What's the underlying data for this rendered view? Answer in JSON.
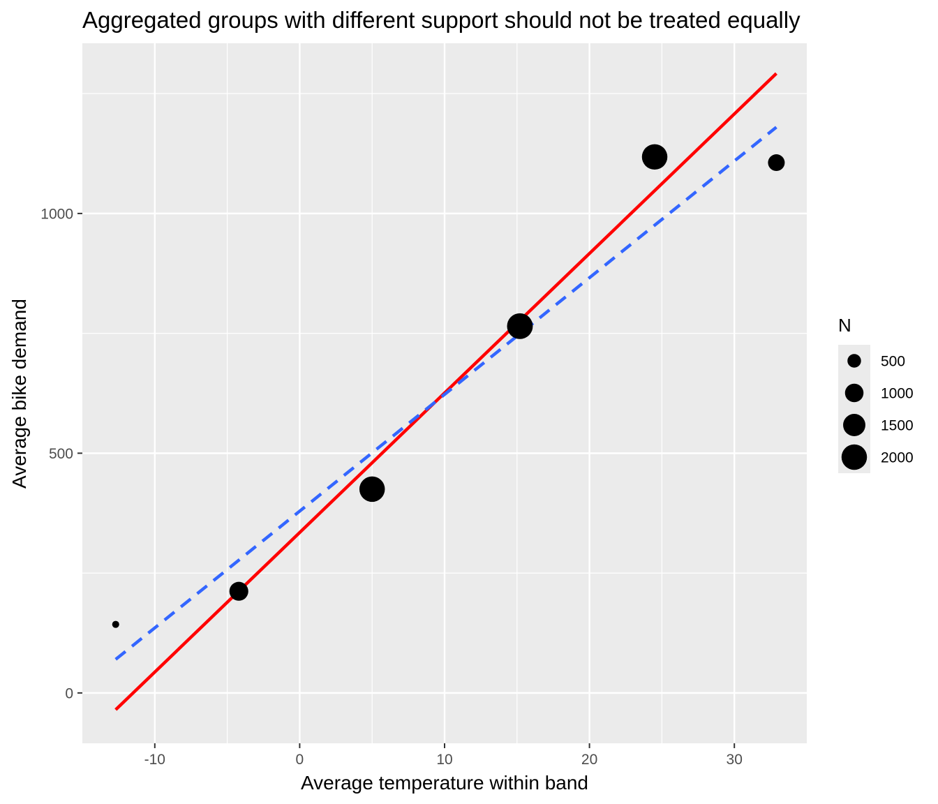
{
  "chart_data": {
    "type": "scatter",
    "title": "Aggregated groups with different support should not be treated equally",
    "xlabel": "Average temperature within band",
    "ylabel": "Average bike demand",
    "xlim": [
      -15,
      35
    ],
    "ylim": [
      -105,
      1355
    ],
    "x_ticks": [
      -10,
      0,
      10,
      20,
      30
    ],
    "x_tick_labels": [
      "-10",
      "0",
      "10",
      "20",
      "30"
    ],
    "y_ticks": [
      0,
      500,
      1000
    ],
    "y_tick_labels": [
      "0",
      "500",
      "1000"
    ],
    "grid": true,
    "points": [
      {
        "x": -12.7,
        "y": 143,
        "n": 100
      },
      {
        "x": -4.2,
        "y": 212,
        "n": 1050
      },
      {
        "x": 5.0,
        "y": 425,
        "n": 2000
      },
      {
        "x": 15.2,
        "y": 765,
        "n": 2050
      },
      {
        "x": 24.5,
        "y": 1118,
        "n": 2000
      },
      {
        "x": 32.9,
        "y": 1106,
        "n": 800
      }
    ],
    "lines": [
      {
        "type": "weighted-fit",
        "color": "#ff0000",
        "style": "solid",
        "x": [
          -12.7,
          32.9
        ],
        "y": [
          -35,
          1292
        ]
      },
      {
        "type": "unweighted-fit",
        "color": "#3366ff",
        "style": "dashed",
        "x": [
          -12.7,
          32.9
        ],
        "y": [
          70,
          1180
        ]
      }
    ],
    "legend": {
      "title": "N",
      "position": "right",
      "entries": [
        {
          "label": "500",
          "n": 500
        },
        {
          "label": "1000",
          "n": 1000
        },
        {
          "label": "1500",
          "n": 1500
        },
        {
          "label": "2000",
          "n": 2000
        }
      ]
    },
    "colors": {
      "panel": "#ebebeb",
      "grid": "#ffffff",
      "points": "#000000"
    }
  }
}
